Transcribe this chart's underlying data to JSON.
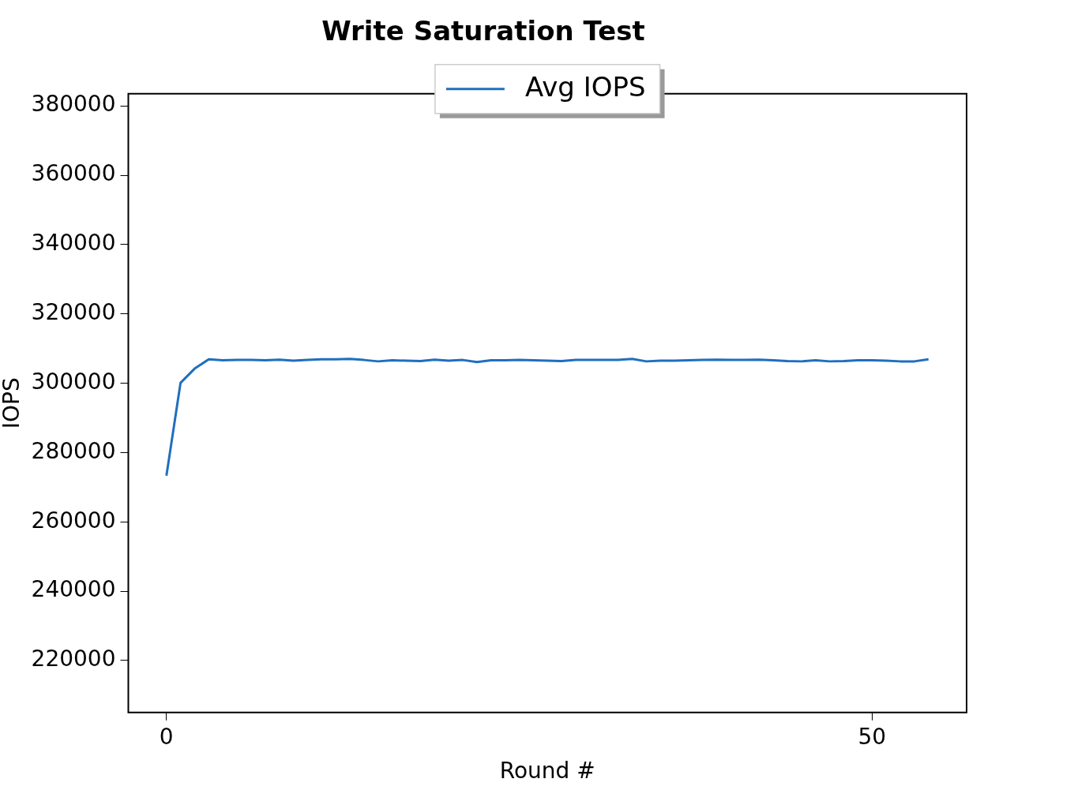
{
  "chart_data": {
    "type": "line",
    "title": "Write Saturation Test",
    "xlabel": "Round #",
    "ylabel": "IOPS",
    "x": [
      0,
      1,
      2,
      3,
      4,
      5,
      6,
      7,
      8,
      9,
      10,
      11,
      12,
      13,
      14,
      15,
      16,
      17,
      18,
      19,
      20,
      21,
      22,
      23,
      24,
      25,
      26,
      27,
      28,
      29,
      30,
      31,
      32,
      33,
      34,
      35,
      36,
      37,
      38,
      39,
      40,
      41,
      42,
      43,
      44,
      45,
      46,
      47,
      48,
      49,
      50,
      51,
      52,
      53,
      54
    ],
    "series": [
      {
        "name": "Avg IOPS",
        "color": "#1f6fbf",
        "values": [
          273300,
          300100,
          304200,
          306900,
          306600,
          306700,
          306700,
          306600,
          306800,
          306500,
          306700,
          306900,
          306900,
          307000,
          306700,
          306300,
          306600,
          306500,
          306400,
          306800,
          306500,
          306700,
          306100,
          306600,
          306600,
          306700,
          306600,
          306500,
          306400,
          306700,
          306700,
          306700,
          306700,
          307000,
          306300,
          306500,
          306500,
          306600,
          306700,
          306800,
          306700,
          306700,
          306800,
          306600,
          306400,
          306300,
          306600,
          306300,
          306400,
          306600,
          306600,
          306500,
          306300,
          306300,
          306900
        ]
      }
    ],
    "xlim": [
      -2.7,
      56.7
    ],
    "xticks": [
      0,
      50
    ],
    "ylim": [
      205000,
      383500
    ],
    "yticks": [
      220000,
      240000,
      260000,
      280000,
      300000,
      320000,
      340000,
      360000,
      380000
    ],
    "grid": false,
    "legend": "top",
    "marker": "none",
    "line_style": "solid"
  }
}
